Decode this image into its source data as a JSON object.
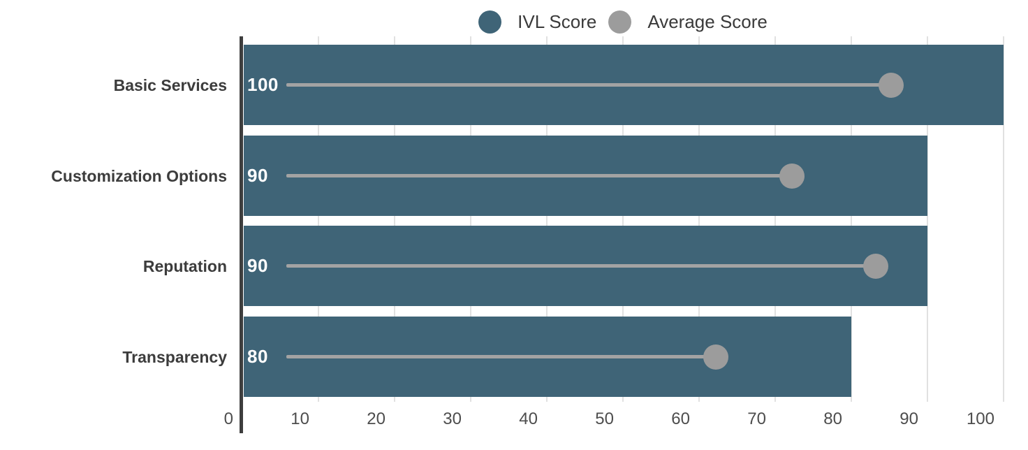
{
  "chart_data": {
    "type": "bar",
    "orientation": "horizontal",
    "title": "",
    "xlabel": "",
    "ylabel": "",
    "categories": [
      "Basic Services",
      "Customization Options",
      "Reputation",
      "Transparency"
    ],
    "series": [
      {
        "name": "IVL Score",
        "style": "bar",
        "color": "#3F6477",
        "values": [
          100,
          90,
          90,
          80
        ]
      },
      {
        "name": "Average Score",
        "style": "lollipop",
        "color": "#9C9C9C",
        "line_color": "#A3A3A3",
        "values": [
          85,
          72,
          83,
          62
        ]
      }
    ],
    "x_axis": {
      "min": 0,
      "max": 100,
      "ticks": [
        0,
        10,
        20,
        30,
        40,
        50,
        60,
        70,
        80,
        90,
        100
      ]
    },
    "grid": true,
    "legend_position": "top",
    "colors": {
      "bar_value_label": "#FFFFFF",
      "axis_line": "#3E3E3E",
      "gridline": "#E1E1E1",
      "category_label": "#3C3C3C",
      "tick_label": "#4D4D4D",
      "legend_text": "#3A3A3A",
      "background": "#FFFFFF"
    }
  }
}
